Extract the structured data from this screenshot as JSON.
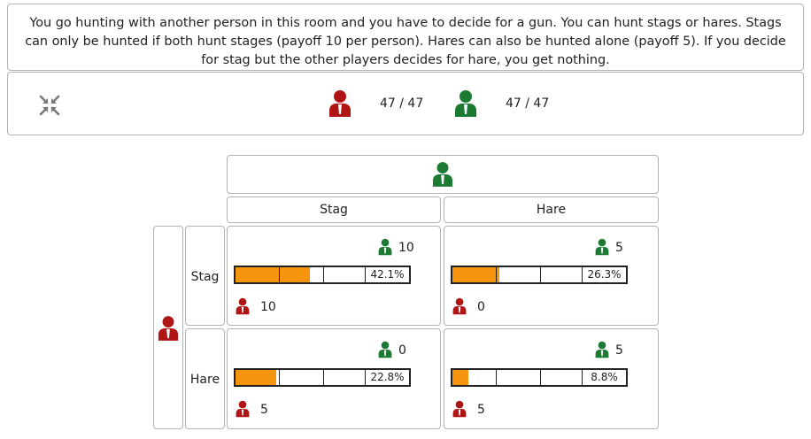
{
  "intro": {
    "text": "You go hunting with another person in this room and you have to decide for a gun. You can hunt stags or hares. Stags can only be hunted if both hunt stages (payoff 10 per person). Hares can also be hunted alone (payoff 5). If you decide for stag but the other players decides for hare, you get nothing."
  },
  "status": {
    "collapse_icon": "compress-arrows-icon",
    "red_count": "47 / 47",
    "green_count": "47 / 47"
  },
  "colors": {
    "red_player": "#b01515",
    "green_player": "#1c7a33",
    "bar_fill": "#f7940e"
  },
  "game": {
    "columns": [
      "Stag",
      "Hare"
    ],
    "rows": [
      "Stag",
      "Hare"
    ],
    "cells": [
      [
        {
          "green_payoff": "10",
          "red_payoff": "10",
          "share": 0.421,
          "share_label": "42.1%"
        },
        {
          "green_payoff": "5",
          "red_payoff": "0",
          "share": 0.263,
          "share_label": "26.3%"
        }
      ],
      [
        {
          "green_payoff": "0",
          "red_payoff": "5",
          "share": 0.228,
          "share_label": "22.8%"
        },
        {
          "green_payoff": "5",
          "red_payoff": "5",
          "share": 0.088,
          "share_label": "8.8%"
        }
      ]
    ]
  }
}
